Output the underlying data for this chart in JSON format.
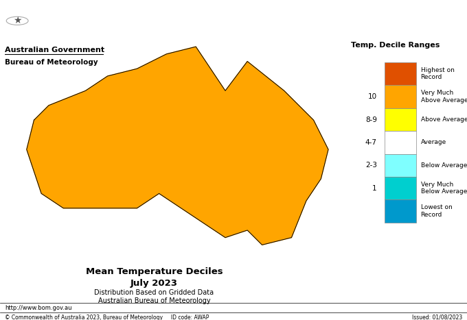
{
  "title_line1": "Mean Temperature Deciles",
  "title_line2": "July 2023",
  "title_line3": "Distribution Based on Gridded Data",
  "title_line4": "Australian Bureau of Meteorology",
  "legend_title": "Temp. Decile Ranges",
  "legend_items": [
    {
      "label": "Highest on\nRecord",
      "color": "#E05000"
    },
    {
      "label": "Very Much\nAbove Average",
      "color": "#FFA500"
    },
    {
      "label": "Above Average",
      "color": "#FFFF00"
    },
    {
      "label": "Average",
      "color": "#FFFFFF"
    },
    {
      "label": "Below Average",
      "color": "#7FFFFF"
    },
    {
      "label": "Very Much\nBelow Average",
      "color": "#00CFCF"
    },
    {
      "label": "Lowest on\nRecord",
      "color": "#0099CC"
    }
  ],
  "legend_decile_labels": [
    "",
    "10",
    "8-9",
    "4-7",
    "2-3",
    "1",
    ""
  ],
  "footer_left": "http://www.bom.gov.au",
  "footer_copyright": "© Commonwealth of Australia 2023, Bureau of Meteorology     ID code: AWAP",
  "footer_right": "Issued: 01/08/2023",
  "gov_label1": "Australian Government",
  "gov_label2": "Bureau of Meteorology",
  "bg_color": "#FFFFFF",
  "map_bg": "#FFFFFF",
  "border_color": "#000000"
}
